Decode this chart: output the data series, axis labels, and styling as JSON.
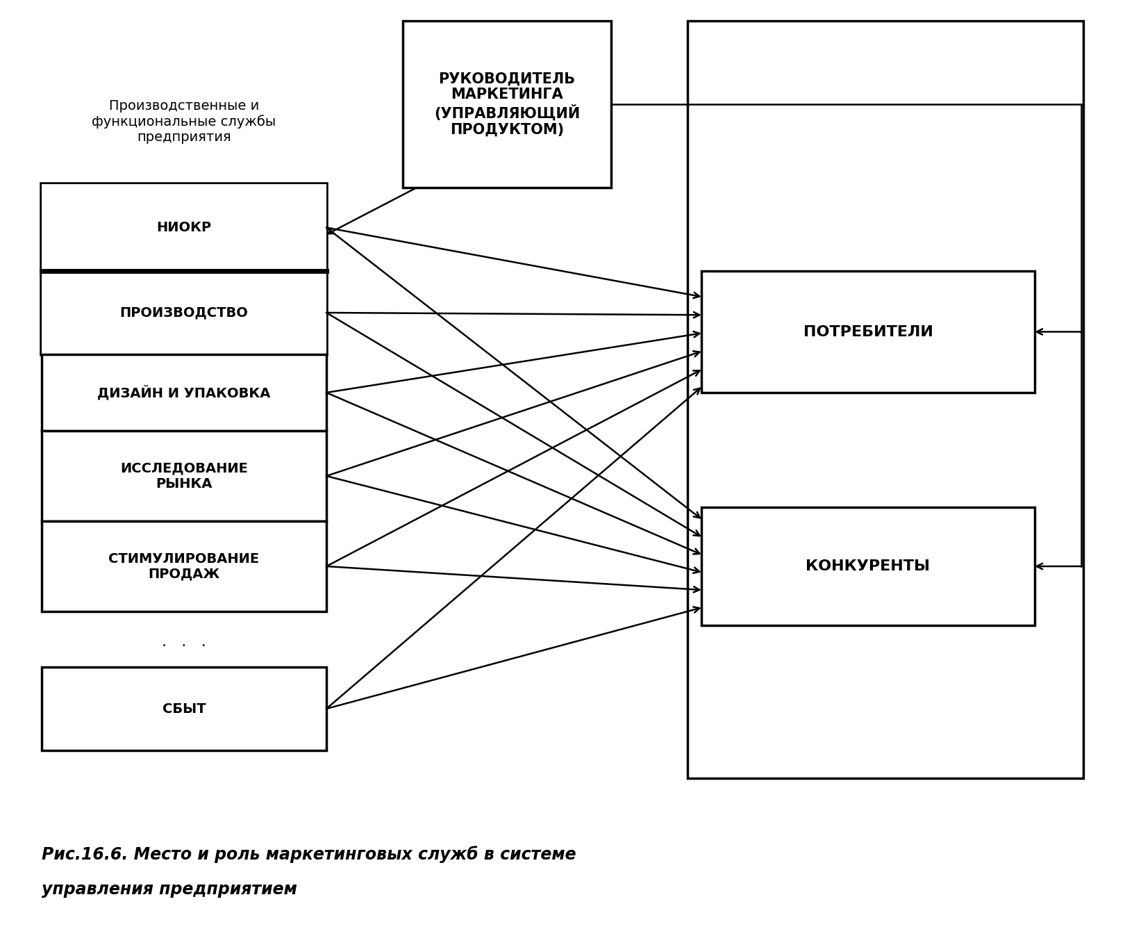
{
  "bg_color": "#ffffff",
  "title_line1": "Рис.16.6. Место и роль маркетинговых служб в системе",
  "title_line2": "управления предприятием",
  "label_top": "Производственные и\nфункциональные службы\nпредприятия",
  "box_manager": "РУКОВОДИТЕЛЬ\nМАРКЕТИНГА\n(УПРАВЛЯЮЩИЙ\nПРОДУКТОМ)",
  "box_consumers": "ПОТРЕБИТЕЛИ",
  "box_competitors": "КОНКУРЕНТЫ",
  "left_boxes": [
    "НИОКР",
    "ПРОИЗВОДСТВО",
    "ДИЗАЙН И УПАКОВКА",
    "ИССЛЕДОВАНИЕ\nРЫНКА",
    "СТИМУЛИРОВАНИЕ\nПРОДАЖ",
    "СБЫТ"
  ],
  "lw": 2.5,
  "arrow_lw": 1.8,
  "outer_lw": 2.5
}
